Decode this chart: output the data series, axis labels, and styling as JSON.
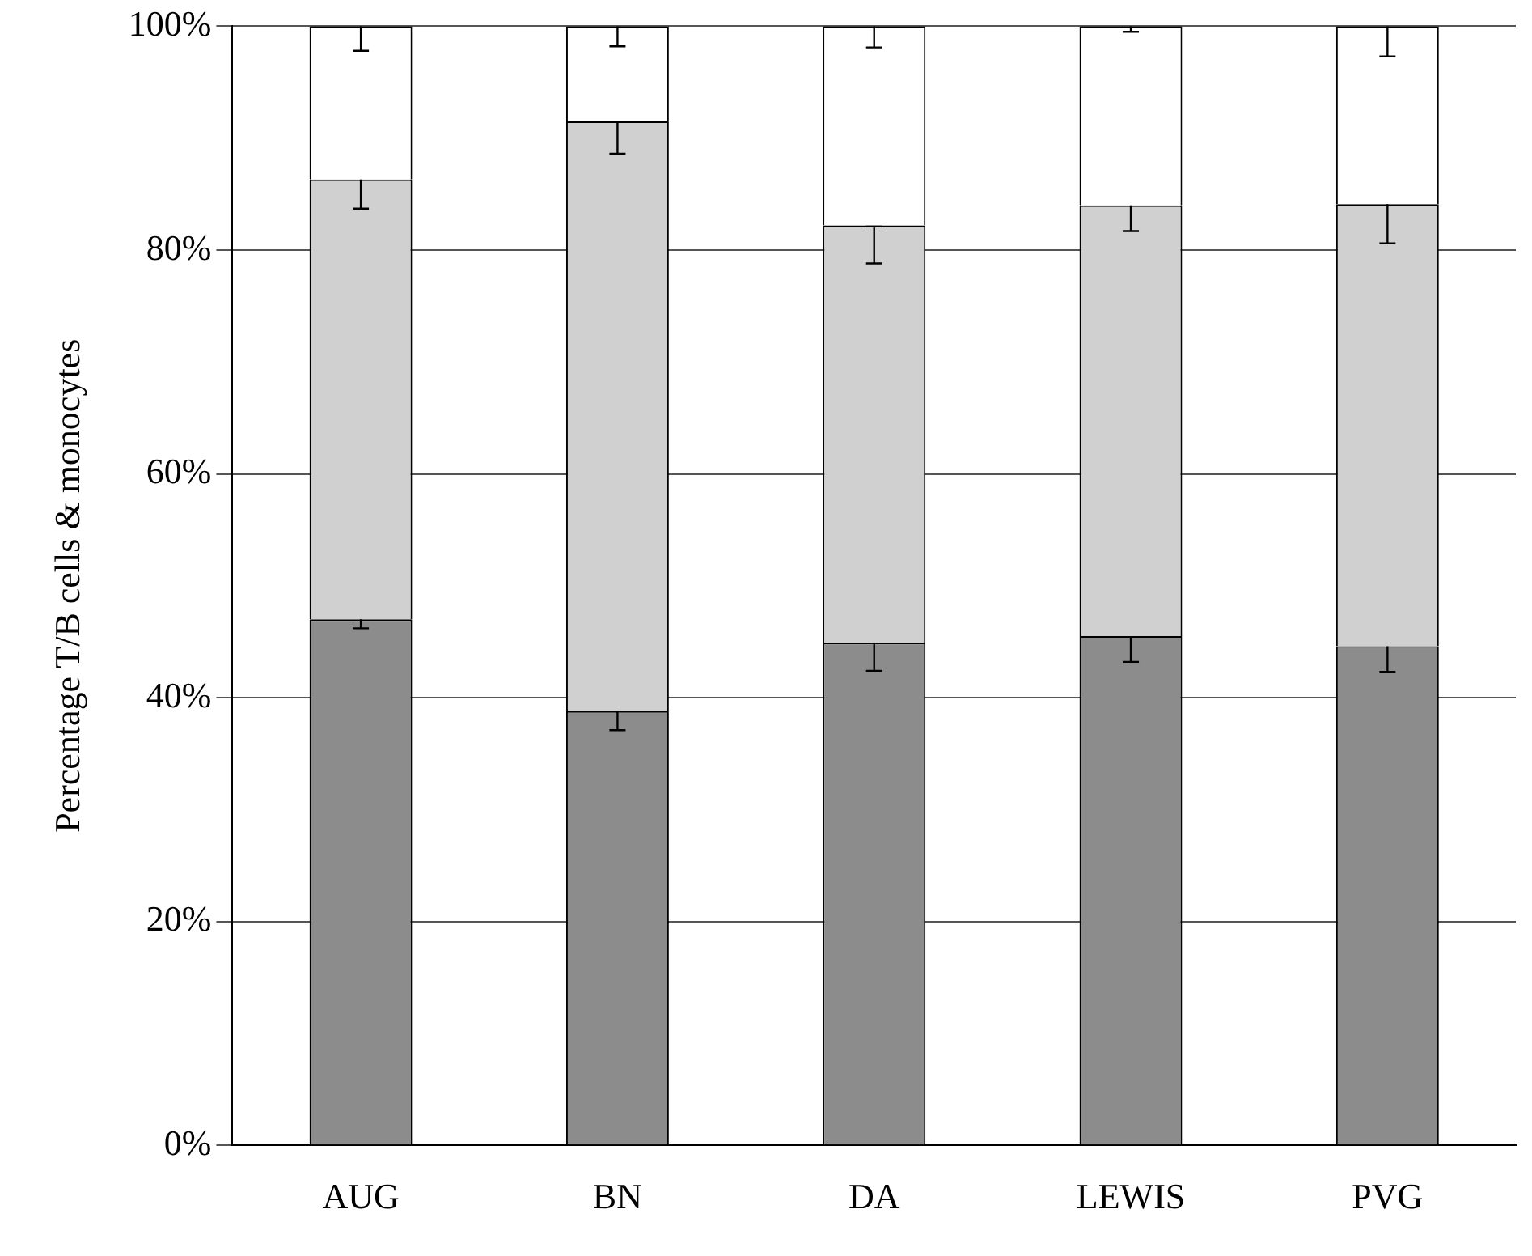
{
  "chart_data": {
    "type": "bar",
    "stacked": true,
    "ylabel": "Percentage T/B cells & monocytes",
    "categories": [
      "AUG",
      "BN",
      "DA",
      "LEWIS",
      "PVG"
    ],
    "series": [
      {
        "color": "#8c8c8c",
        "values": [
          47.0,
          38.8,
          44.9,
          45.5,
          44.6
        ],
        "errors": [
          [
            46.2,
            47.0
          ],
          [
            37.1,
            38.8
          ],
          [
            42.4,
            44.9
          ],
          [
            43.2,
            45.5
          ],
          [
            42.3,
            44.6
          ]
        ]
      },
      {
        "color": "#d0d0d0",
        "values": [
          39.3,
          52.7,
          37.3,
          38.5,
          39.5
        ],
        "errors": [
          [
            83.7,
            86.3
          ],
          [
            88.6,
            91.5
          ],
          [
            78.8,
            82.1
          ],
          [
            81.7,
            84.0
          ],
          [
            80.6,
            84.1
          ]
        ]
      },
      {
        "color": "#ffffff",
        "values": [
          13.7,
          8.5,
          17.8,
          16.0,
          15.9
        ],
        "errors": [
          [
            97.8,
            100
          ],
          [
            98.2,
            100
          ],
          [
            98.1,
            100
          ],
          [
            99.5,
            100
          ],
          [
            97.3,
            100
          ]
        ]
      }
    ],
    "ylim": [
      0,
      100
    ],
    "yticks": [
      {
        "value": 0,
        "label": "0%"
      },
      {
        "value": 20,
        "label": "20%"
      },
      {
        "value": 40,
        "label": "40%"
      },
      {
        "value": 60,
        "label": "60%"
      },
      {
        "value": 80,
        "label": "80%"
      },
      {
        "value": 100,
        "label": "100%"
      }
    ],
    "grid": "y",
    "legend": false
  }
}
